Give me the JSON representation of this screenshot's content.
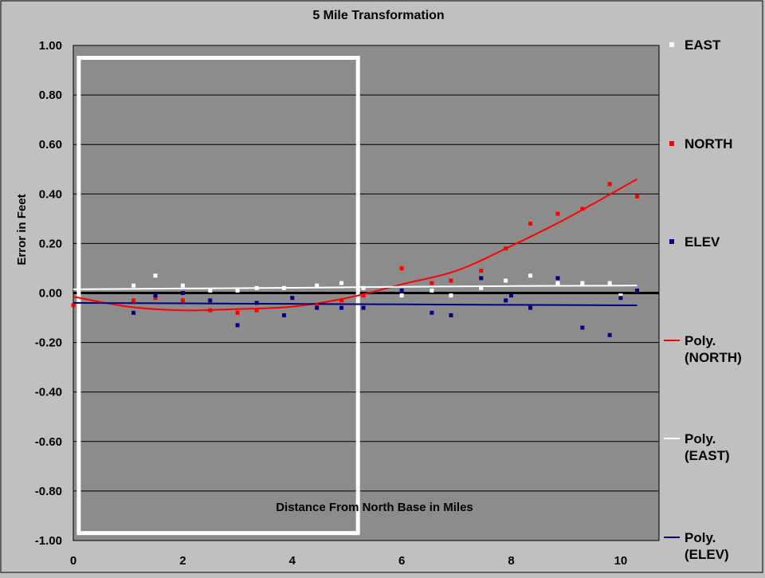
{
  "chart_data": {
    "type": "scatter",
    "title": "5 Mile Transformation",
    "xlabel": "Distance From North Base in Miles",
    "ylabel": "Error in Feet",
    "xlim": [
      0,
      10.7
    ],
    "ylim": [
      -1.0,
      1.0
    ],
    "x_ticks": [
      "0",
      "2",
      "4",
      "6",
      "8",
      "10"
    ],
    "x_tick_values": [
      0,
      2,
      4,
      6,
      8,
      10
    ],
    "y_ticks": [
      "1.00",
      "0.80",
      "0.60",
      "0.40",
      "0.20",
      "0.00",
      "-0.20",
      "-0.40",
      "-0.60",
      "-0.80",
      "-1.00"
    ],
    "y_tick_values": [
      1.0,
      0.8,
      0.6,
      0.4,
      0.2,
      0.0,
      -0.2,
      -0.4,
      -0.6,
      -0.8,
      -1.0
    ],
    "grid": true,
    "legend_position": "right",
    "colors": {
      "background": "#c0c0c0",
      "plot_area": "#8c8c8c",
      "east": "#ffffff",
      "north": "#ff0000",
      "elev": "#000080",
      "grid": "#000000",
      "highlight_box": "#ffffff"
    },
    "highlight_box": {
      "x_range": [
        0.1,
        5.2
      ],
      "y_range": [
        -0.97,
        0.95
      ]
    },
    "series": [
      {
        "name": "EAST",
        "kind": "points",
        "color_key": "east",
        "x": [
          1.1,
          1.5,
          2.0,
          2.5,
          3.0,
          3.35,
          3.85,
          4.45,
          4.9,
          5.3,
          6.0,
          6.55,
          6.9,
          7.45,
          7.9,
          8.35,
          8.85,
          9.3,
          9.8,
          10.0,
          10.3
        ],
        "y": [
          0.03,
          0.07,
          0.03,
          0.01,
          0.01,
          0.02,
          0.02,
          0.03,
          0.04,
          0.02,
          -0.01,
          0.01,
          -0.01,
          0.02,
          0.05,
          0.07,
          0.04,
          0.04,
          0.04,
          -0.01,
          0.01
        ]
      },
      {
        "name": "NORTH",
        "kind": "points",
        "color_key": "north",
        "x": [
          0.0,
          1.1,
          1.5,
          2.0,
          2.5,
          3.0,
          3.35,
          4.45,
          4.9,
          5.3,
          6.0,
          6.55,
          6.9,
          7.45,
          7.9,
          8.35,
          8.85,
          9.3,
          9.8,
          10.3
        ],
        "y": [
          -0.05,
          -0.03,
          -0.02,
          -0.03,
          -0.07,
          -0.08,
          -0.07,
          -0.05,
          -0.03,
          -0.01,
          0.1,
          0.04,
          0.05,
          0.09,
          0.18,
          0.28,
          0.32,
          0.34,
          0.44,
          0.39
        ]
      },
      {
        "name": "ELEV",
        "kind": "points",
        "color_key": "elev",
        "x": [
          1.1,
          1.5,
          2.0,
          2.5,
          3.0,
          3.35,
          3.85,
          4.0,
          4.45,
          4.9,
          5.3,
          6.0,
          6.55,
          6.9,
          7.45,
          7.9,
          8.0,
          8.35,
          8.85,
          9.3,
          9.8,
          10.0,
          10.3
        ],
        "y": [
          -0.08,
          -0.01,
          0.0,
          -0.03,
          -0.13,
          -0.04,
          -0.09,
          -0.02,
          -0.06,
          -0.06,
          -0.06,
          0.01,
          -0.08,
          -0.09,
          0.06,
          -0.03,
          -0.01,
          -0.06,
          0.06,
          -0.14,
          -0.17,
          -0.02,
          0.01
        ]
      },
      {
        "name": "Poly. (NORTH)",
        "kind": "curve",
        "color_key": "north",
        "x": [
          0.0,
          1.0,
          2.0,
          3.0,
          4.0,
          5.0,
          6.0,
          7.0,
          8.0,
          9.0,
          10.3
        ],
        "y": [
          -0.015,
          -0.055,
          -0.07,
          -0.065,
          -0.055,
          -0.02,
          0.035,
          0.09,
          0.19,
          0.3,
          0.46
        ]
      },
      {
        "name": "Poly. (EAST)",
        "kind": "curve",
        "color_key": "east",
        "x": [
          0.0,
          2.0,
          4.0,
          6.0,
          8.0,
          10.3
        ],
        "y": [
          0.015,
          0.018,
          0.021,
          0.025,
          0.028,
          0.03
        ]
      },
      {
        "name": "Poly. (ELEV)",
        "kind": "curve",
        "color_key": "elev",
        "x": [
          0.0,
          2.0,
          4.0,
          6.0,
          8.0,
          10.3
        ],
        "y": [
          -0.04,
          -0.042,
          -0.044,
          -0.046,
          -0.048,
          -0.05
        ]
      }
    ],
    "legend": [
      {
        "label": "EAST",
        "marker": "square",
        "color_key": "east"
      },
      {
        "label": "NORTH",
        "marker": "square",
        "color_key": "north"
      },
      {
        "label": "ELEV",
        "marker": "square",
        "color_key": "elev"
      },
      {
        "label": "Poly.\n(NORTH)",
        "marker": "line",
        "color_key": "north"
      },
      {
        "label": "Poly.\n(EAST)",
        "marker": "line",
        "color_key": "east"
      },
      {
        "label": "Poly.\n(ELEV)",
        "marker": "line",
        "color_key": "elev"
      }
    ]
  }
}
